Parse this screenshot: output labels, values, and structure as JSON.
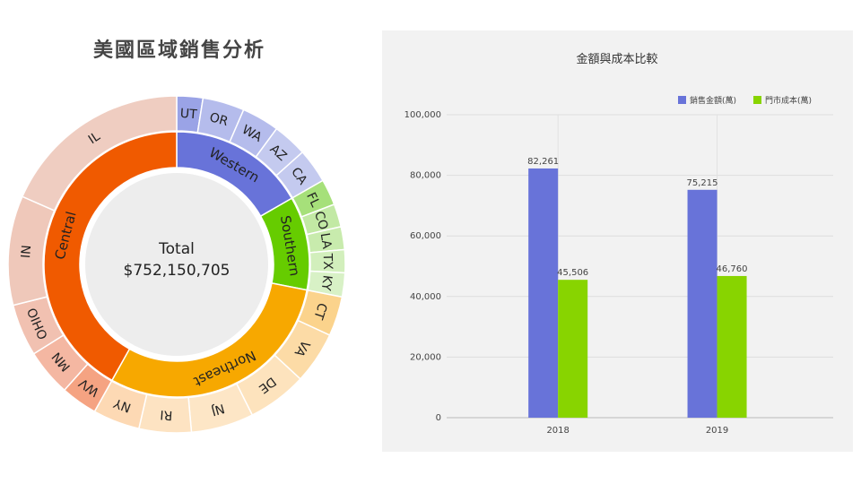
{
  "sunburst": {
    "title": "美國區域銷售分析",
    "center_label": "Total",
    "center_value": "$752,150,705",
    "inner": [
      {
        "name": "Western",
        "color": "#6873d9",
        "share": 0.167
      },
      {
        "name": "Southern",
        "color": "#66cc00",
        "share": 0.114
      },
      {
        "name": "Northeast",
        "color": "#f7a800",
        "share": 0.3
      },
      {
        "name": "Central",
        "color": "#f05a00",
        "share": 0.419
      }
    ],
    "outer": [
      {
        "name": "UT",
        "parent": 0,
        "color": "#9aa3e6",
        "share": 0.025
      },
      {
        "name": "OR",
        "parent": 0,
        "color": "#b5bcec",
        "share": 0.04
      },
      {
        "name": "WA",
        "parent": 0,
        "color": "#b5bcec",
        "share": 0.036
      },
      {
        "name": "AZ",
        "parent": 0,
        "color": "#c4caef",
        "share": 0.033
      },
      {
        "name": "CA",
        "parent": 0,
        "color": "#c4caef",
        "share": 0.033
      },
      {
        "name": "FL",
        "parent": 1,
        "color": "#a6e07a",
        "share": 0.025
      },
      {
        "name": "CO",
        "parent": 1,
        "color": "#c2e9a4",
        "share": 0.022
      },
      {
        "name": "LA",
        "parent": 1,
        "color": "#c8ebad",
        "share": 0.022
      },
      {
        "name": "TX",
        "parent": 1,
        "color": "#d2efbc",
        "share": 0.022
      },
      {
        "name": "KY",
        "parent": 1,
        "color": "#d8f1c6",
        "share": 0.023
      },
      {
        "name": "CT",
        "parent": 2,
        "color": "#fbd38c",
        "share": 0.038
      },
      {
        "name": "VA",
        "parent": 2,
        "color": "#fcdba6",
        "share": 0.05
      },
      {
        "name": "DE",
        "parent": 2,
        "color": "#fde3bd",
        "share": 0.057
      },
      {
        "name": "NJ",
        "parent": 2,
        "color": "#fde6c6",
        "share": 0.06
      },
      {
        "name": "RI",
        "parent": 2,
        "color": "#fde3c2",
        "share": 0.05
      },
      {
        "name": "NY",
        "parent": 2,
        "color": "#fdd9b4",
        "share": 0.045
      },
      {
        "name": "WV",
        "parent": 3,
        "color": "#f5a382",
        "share": 0.035
      },
      {
        "name": "MN",
        "parent": 3,
        "color": "#f4b7a2",
        "share": 0.045
      },
      {
        "name": "OHIO",
        "parent": 3,
        "color": "#f1c1b1",
        "share": 0.05
      },
      {
        "name": "IN",
        "parent": 3,
        "color": "#efc8ba",
        "share": 0.105
      },
      {
        "name": "IL",
        "parent": 3,
        "color": "#efcdc1",
        "share": 0.184
      }
    ]
  },
  "chart_data": {
    "type": "bar",
    "title": "金額與成本比較",
    "categories": [
      "2018",
      "2019"
    ],
    "series": [
      {
        "name": "銷售金額(萬)",
        "color": "#6873d9",
        "values": [
          82261,
          75215
        ],
        "labels": [
          "82,261",
          "75,215"
        ]
      },
      {
        "name": "門市成本(萬)",
        "color": "#88d400",
        "values": [
          45506,
          46760
        ],
        "labels": [
          "45,506",
          "46,760"
        ]
      }
    ],
    "ylim": [
      0,
      100000
    ],
    "yticks": [
      0,
      20000,
      40000,
      60000,
      80000,
      100000
    ],
    "ytick_labels": [
      "0",
      "20,000",
      "40,000",
      "60,000",
      "80,000",
      "100,000"
    ],
    "legend": "top-right",
    "grid": true
  }
}
